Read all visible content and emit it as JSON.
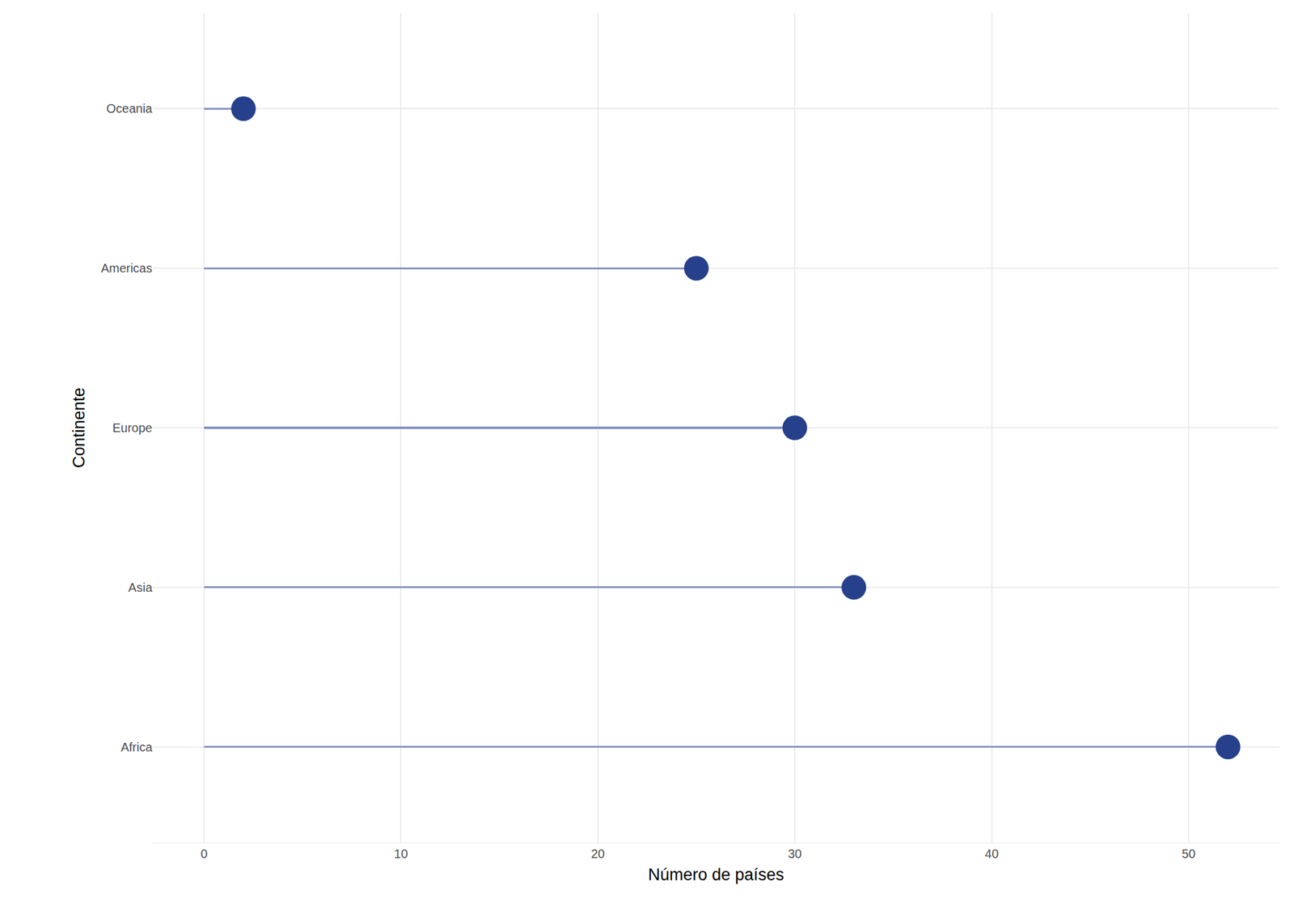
{
  "chart_data": {
    "type": "lollipop",
    "orientation": "horizontal",
    "x_label": "Número de países",
    "y_label": "Continente",
    "categories": [
      "Africa",
      "Asia",
      "Europe",
      "Americas",
      "Oceania"
    ],
    "values": [
      52,
      33,
      30,
      25,
      2
    ],
    "color": "#26408b",
    "line_color": "#8593c0",
    "marker": "circle",
    "xlim": [
      -2.6,
      54.6
    ],
    "xticks": [
      0,
      10,
      20,
      30,
      40,
      50
    ],
    "grid": true
  }
}
